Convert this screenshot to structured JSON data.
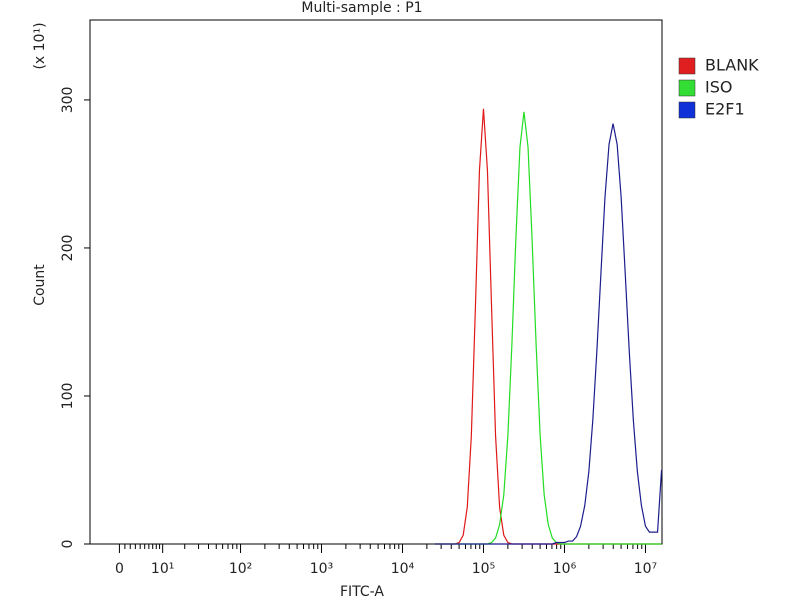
{
  "chart_data": {
    "type": "line",
    "title": "Multi-sample : P1",
    "x_label": "FITC-A",
    "y_label": "Count",
    "y_multiplier": "(x 10¹)",
    "xscale": "biexponential",
    "xlim": [
      -6,
      16000000
    ],
    "xticks": [
      0,
      {
        "value": 10,
        "label": "10¹"
      },
      {
        "value": 100,
        "label": "10²"
      },
      {
        "value": 1000,
        "label": "10³"
      },
      {
        "value": 10000,
        "label": "10⁴"
      },
      {
        "value": 100000,
        "label": "10⁵"
      },
      {
        "value": 1000000,
        "label": "10⁶"
      },
      {
        "value": 10000000,
        "label": "10⁷"
      }
    ],
    "xminorticks": [
      1,
      2,
      3,
      4,
      5,
      6,
      7,
      8,
      9,
      20,
      30,
      40,
      50,
      60,
      70,
      80,
      90,
      200,
      300,
      400,
      500,
      600,
      700,
      800,
      900,
      2000,
      3000,
      4000,
      5000,
      6000,
      7000,
      8000,
      9000,
      20000,
      30000,
      40000,
      50000,
      60000,
      70000,
      80000,
      90000,
      200000,
      300000,
      400000,
      500000,
      600000,
      700000,
      800000,
      900000,
      2000000,
      3000000,
      4000000,
      5000000,
      6000000,
      7000000,
      8000000,
      9000000
    ],
    "ylim": [
      0,
      354
    ],
    "yticks": [
      0,
      100,
      200,
      300
    ],
    "legend": "right",
    "x": [
      25100,
      28200,
      31600,
      35500,
      39800,
      44700,
      50100,
      56200,
      63100,
      70800,
      79400,
      89100,
      100000,
      112000,
      126000,
      141000,
      158000,
      178000,
      200000,
      224000,
      251000,
      282000,
      316000,
      355000,
      398000,
      447000,
      501000,
      562000,
      631000,
      708000,
      794000,
      891000,
      1000000,
      1120000,
      1260000,
      1410000,
      1580000,
      1780000,
      2000000,
      2240000,
      2510000,
      2820000,
      3160000,
      3550000,
      3980000,
      4470000,
      5010000,
      5620000,
      6310000,
      7080000,
      7940000,
      8910000,
      10000000,
      11200000,
      12600000,
      14100000,
      15800000
    ],
    "series": [
      {
        "name": "BLANK",
        "color": "#e01818",
        "legend_color": "#e02020",
        "values": [
          0,
          0,
          0,
          0,
          0,
          0,
          1,
          6,
          25,
          73,
          159,
          252,
          294,
          252,
          159,
          73,
          25,
          6,
          1,
          0,
          0,
          0,
          0,
          0,
          0,
          0,
          0,
          0,
          0,
          0,
          0,
          0,
          0,
          0,
          0,
          0,
          0,
          0,
          0,
          0,
          0,
          0,
          0,
          0,
          0,
          0,
          0,
          0,
          0,
          0,
          0,
          0,
          0,
          0,
          0,
          0,
          0
        ]
      },
      {
        "name": "ISO",
        "color": "#22dd22",
        "legend_color": "#33dd33",
        "values": [
          0,
          0,
          0,
          0,
          0,
          0,
          0,
          0,
          0,
          0,
          0,
          0,
          0,
          0,
          1,
          4,
          13,
          33,
          73,
          134,
          206,
          268,
          292,
          268,
          206,
          134,
          73,
          33,
          13,
          4,
          1,
          0,
          0,
          0,
          0,
          0,
          0,
          0,
          0,
          0,
          0,
          0,
          0,
          0,
          0,
          0,
          0,
          0,
          0,
          0,
          0,
          0,
          0,
          0,
          0,
          0,
          0
        ]
      },
      {
        "name": "E2F1",
        "color": "#1c1c8c",
        "legend_color": "#1030d8",
        "values": [
          0,
          0,
          0,
          0,
          0,
          0,
          0,
          0,
          0,
          0,
          0,
          0,
          0,
          0,
          0,
          0,
          0,
          0,
          0,
          0,
          0,
          0,
          0,
          0,
          0,
          0,
          0,
          0,
          0,
          0,
          1,
          1,
          1,
          2,
          2,
          5,
          12,
          26,
          49,
          84,
          130,
          183,
          234,
          270,
          284,
          270,
          234,
          183,
          130,
          84,
          49,
          26,
          12,
          8,
          8,
          8,
          50
        ]
      }
    ]
  }
}
